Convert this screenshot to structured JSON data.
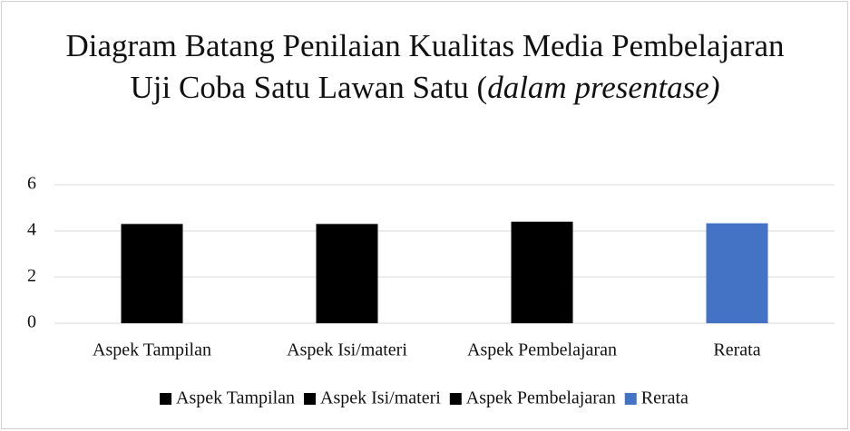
{
  "chart_data": {
    "type": "bar",
    "title_parts": [
      {
        "text": "Diagram Batang Penilaian Kualitas Media Pembelajaran Uji Coba Satu Lawan Satu (",
        "italic": false
      },
      {
        "text": "dalam presentase)",
        "italic": true
      }
    ],
    "categories": [
      "Aspek Tampilan",
      "Aspek Isi/materi",
      "Aspek Pembelajaran",
      "Rerata"
    ],
    "values": [
      4.3,
      4.3,
      4.4,
      4.33
    ],
    "colors": [
      "#000000",
      "#000000",
      "#000000",
      "#4472c4"
    ],
    "ylim": [
      0,
      6
    ],
    "yticks": [
      0,
      2,
      4,
      6
    ],
    "grid": true,
    "legend": "bottom"
  }
}
